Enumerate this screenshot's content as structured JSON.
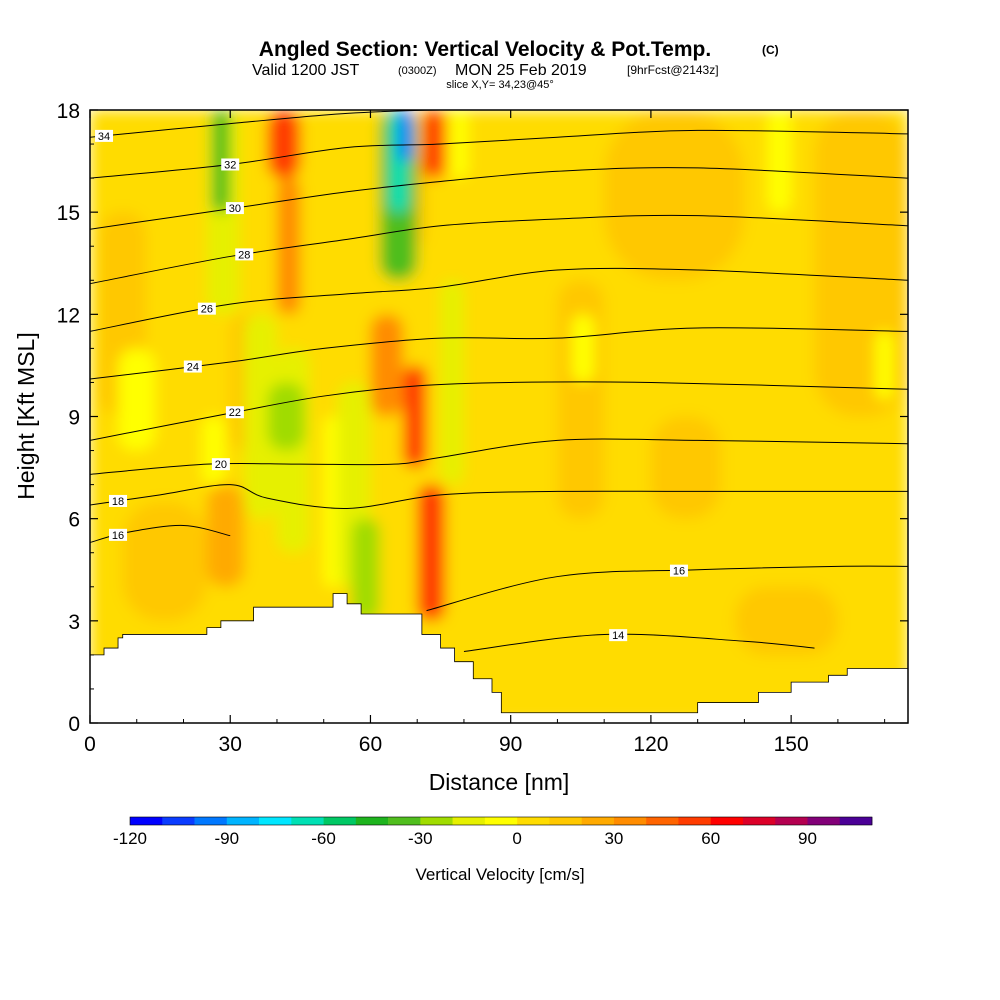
{
  "header": {
    "title": "Angled Section: Vertical Velocity & Pot.Temp.",
    "title_unit": "(C)",
    "valid_prefix": "Valid 1200 JST",
    "valid_utc": "(0300Z)",
    "valid_date": "MON 25 Feb 2019",
    "forecast": "[9hrFcst@2143z]",
    "slice": "slice X,Y= 34,23@45°"
  },
  "chart_data": {
    "type": "heatmap",
    "xlabel": "Distance [nm]",
    "ylabel": "Height [Kft MSL]",
    "xlim": [
      0,
      175
    ],
    "ylim": [
      0,
      18
    ],
    "x_ticks": [
      0,
      30,
      60,
      90,
      120,
      150
    ],
    "y_ticks": [
      0,
      3,
      6,
      9,
      12,
      15,
      18
    ],
    "x_tick_labels": [
      "0",
      "30",
      "60",
      "90",
      "120",
      "150"
    ],
    "y_tick_labels": [
      "0",
      "3",
      "6",
      "9",
      "12",
      "15",
      "18"
    ],
    "colorbar": {
      "label": "Vertical Velocity [cm/s]",
      "range": [
        -120,
        110
      ],
      "step": 10,
      "tick_values": [
        -120,
        -90,
        -60,
        -30,
        0,
        30,
        60,
        90
      ],
      "tick_labels": [
        "-120",
        "-90",
        "-60",
        "-30",
        "0",
        "30",
        "60",
        "90"
      ],
      "colors": [
        "#0000ff",
        "#0a3cff",
        "#0078ff",
        "#00b4ff",
        "#00e6ff",
        "#00e0b4",
        "#00c864",
        "#1eb41e",
        "#50be1e",
        "#a0dc00",
        "#e6f000",
        "#ffff00",
        "#ffdc00",
        "#ffc800",
        "#ffaa00",
        "#ff8c00",
        "#ff6400",
        "#ff3c00",
        "#ff0000",
        "#dc0028",
        "#b40050",
        "#820078",
        "#4b0096"
      ]
    },
    "velocity_cells": [
      {
        "x0": 0,
        "x1": 175,
        "y0": 0,
        "y1": 18,
        "v": 5
      },
      {
        "x0": 0,
        "x1": 28,
        "y0": 0,
        "y1": 6,
        "v": 0
      },
      {
        "x0": 90,
        "x1": 175,
        "y0": 0,
        "y1": 5,
        "v": 0
      },
      {
        "x0": 7,
        "x1": 25,
        "y0": 3,
        "y1": 6.5,
        "v": 15
      },
      {
        "x0": 25,
        "x1": 33,
        "y0": 4,
        "y1": 7,
        "v": 25
      },
      {
        "x0": 110,
        "x1": 140,
        "y0": 13,
        "y1": 18,
        "v": 15
      },
      {
        "x0": 120,
        "x1": 135,
        "y0": 6,
        "y1": 9,
        "v": 15
      },
      {
        "x0": 100,
        "x1": 110,
        "y0": 6,
        "y1": 13,
        "v": 15
      },
      {
        "x0": 155,
        "x1": 175,
        "y0": 9,
        "y1": 18,
        "v": 15
      },
      {
        "x0": 138,
        "x1": 160,
        "y0": 2,
        "y1": 4,
        "v": 15
      },
      {
        "x0": 2,
        "x1": 12,
        "y0": 9,
        "y1": 15,
        "v": 15
      },
      {
        "x0": 66,
        "x1": 72,
        "y0": 14,
        "y1": 17,
        "v": 15
      },
      {
        "x0": 30,
        "x1": 37,
        "y0": 8,
        "y1": 12,
        "v": 15
      },
      {
        "x0": 6,
        "x1": 14,
        "y0": 8,
        "y1": 11,
        "v": -10
      },
      {
        "x0": 24,
        "x1": 29,
        "y0": 7,
        "y1": 9,
        "v": -10
      },
      {
        "x0": 103,
        "x1": 108,
        "y0": 10,
        "y1": 12,
        "v": -10
      },
      {
        "x0": 145,
        "x1": 150,
        "y0": 15,
        "y1": 18,
        "v": -10
      },
      {
        "x0": 168,
        "x1": 172,
        "y0": 9.5,
        "y1": 11.5,
        "v": -10
      },
      {
        "x0": 77,
        "x1": 81,
        "y0": 16,
        "y1": 18,
        "v": -10
      },
      {
        "x0": 50,
        "x1": 54,
        "y0": 4,
        "y1": 9,
        "v": -10
      },
      {
        "x0": 25,
        "x1": 32,
        "y0": 12,
        "y1": 18,
        "v": -20
      },
      {
        "x0": 33,
        "x1": 40,
        "y0": 6,
        "y1": 12,
        "v": -20
      },
      {
        "x0": 40,
        "x1": 47,
        "y0": 5,
        "y1": 11,
        "v": -20
      },
      {
        "x0": 53,
        "x1": 60,
        "y0": 4,
        "y1": 10,
        "v": -20
      },
      {
        "x0": 56,
        "x1": 62,
        "y0": 3,
        "y1": 6,
        "v": -30
      },
      {
        "x0": 62,
        "x1": 70,
        "y0": 13,
        "y1": 18,
        "v": -40
      },
      {
        "x0": 75,
        "x1": 80,
        "y0": 7,
        "y1": 13,
        "v": -20
      },
      {
        "x0": 26,
        "x1": 30,
        "y0": 15,
        "y1": 18,
        "v": -40
      },
      {
        "x0": 38,
        "x1": 46,
        "y0": 8,
        "y1": 10,
        "v": -30
      },
      {
        "x0": 64,
        "x1": 68,
        "y0": 15,
        "y1": 18,
        "v": -70
      },
      {
        "x0": 66,
        "x1": 69,
        "y0": 16.5,
        "y1": 18,
        "v": -100
      },
      {
        "x0": 38,
        "x1": 45,
        "y0": 16,
        "y1": 18,
        "v": 50
      },
      {
        "x0": 40,
        "x1": 45,
        "y0": 12,
        "y1": 16,
        "v": 30
      },
      {
        "x0": 60,
        "x1": 67,
        "y0": 9,
        "y1": 12,
        "v": 30
      },
      {
        "x0": 67,
        "x1": 72,
        "y0": 7.5,
        "y1": 10.5,
        "v": 50
      },
      {
        "x0": 70,
        "x1": 76,
        "y0": 3,
        "y1": 7,
        "v": 50
      },
      {
        "x0": 71,
        "x1": 76,
        "y0": 16,
        "y1": 18,
        "v": 50
      }
    ],
    "theta_contours": [
      {
        "level": 14,
        "x": [
          80,
          110,
          140,
          155
        ],
        "y": [
          2.1,
          2.6,
          2.4,
          2.2
        ],
        "label_x": 113
      },
      {
        "level": 16,
        "x": [
          72,
          100,
          130,
          160,
          175
        ],
        "y": [
          3.3,
          4.3,
          4.5,
          4.6,
          4.6
        ],
        "label_x": 126
      },
      {
        "level": 16,
        "x": [
          0,
          8,
          20,
          30
        ],
        "y": [
          5.3,
          5.6,
          5.8,
          5.5
        ],
        "label_x": 6
      },
      {
        "level": 18,
        "x": [
          0,
          15,
          30,
          38,
          55,
          75,
          100,
          130,
          175
        ],
        "y": [
          6.4,
          6.7,
          7.0,
          6.6,
          6.3,
          6.7,
          6.8,
          6.8,
          6.8
        ],
        "label_x": 6
      },
      {
        "level": 20,
        "x": [
          0,
          25,
          45,
          65,
          75,
          100,
          130,
          175
        ],
        "y": [
          7.3,
          7.6,
          7.6,
          7.6,
          7.8,
          8.3,
          8.3,
          8.2
        ],
        "label_x": 28
      },
      {
        "level": 22,
        "x": [
          0,
          30,
          50,
          70,
          90,
          120,
          175
        ],
        "y": [
          8.3,
          9.1,
          9.6,
          9.9,
          10.0,
          10.0,
          9.8
        ],
        "label_x": 31
      },
      {
        "level": 24,
        "x": [
          0,
          30,
          50,
          75,
          100,
          130,
          175
        ],
        "y": [
          10.1,
          10.6,
          11.0,
          11.3,
          11.3,
          11.6,
          11.5
        ],
        "label_x": 22
      },
      {
        "level": 26,
        "x": [
          0,
          30,
          55,
          75,
          100,
          130,
          175
        ],
        "y": [
          11.5,
          12.3,
          12.6,
          12.8,
          13.3,
          13.3,
          13.0
        ],
        "label_x": 25
      },
      {
        "level": 28,
        "x": [
          0,
          30,
          55,
          75,
          100,
          130,
          175
        ],
        "y": [
          12.9,
          13.7,
          14.2,
          14.6,
          14.8,
          14.9,
          14.6
        ],
        "label_x": 33
      },
      {
        "level": 30,
        "x": [
          0,
          30,
          55,
          75,
          100,
          130,
          175
        ],
        "y": [
          14.5,
          15.1,
          15.6,
          15.9,
          16.2,
          16.3,
          16.0
        ],
        "label_x": 31
      },
      {
        "level": 32,
        "x": [
          0,
          30,
          55,
          75,
          100,
          130,
          175
        ],
        "y": [
          16.0,
          16.4,
          16.9,
          17.0,
          17.2,
          17.4,
          17.3
        ],
        "label_x": 30
      },
      {
        "level": 34,
        "x": [
          0,
          30,
          55,
          75,
          100,
          175
        ],
        "y": [
          17.2,
          17.6,
          17.9,
          18.0,
          18.0,
          18.0
        ],
        "label_x": 3
      }
    ],
    "terrain": {
      "x": [
        0,
        3,
        3,
        6,
        6,
        7,
        7,
        25,
        25,
        28,
        28,
        35,
        35,
        52,
        52,
        55,
        55,
        58,
        58,
        62,
        62,
        71,
        71,
        75,
        75,
        78,
        78,
        82,
        82,
        86,
        86,
        88,
        88,
        130,
        130,
        143,
        143,
        150,
        150,
        158,
        158,
        162,
        162,
        175
      ],
      "y": [
        2,
        2,
        2.2,
        2.2,
        2.5,
        2.5,
        2.6,
        2.6,
        2.8,
        2.8,
        3.0,
        3.0,
        3.4,
        3.4,
        3.8,
        3.8,
        3.5,
        3.5,
        3.2,
        3.2,
        3.2,
        3.2,
        2.6,
        2.6,
        2.2,
        2.2,
        1.8,
        1.8,
        1.3,
        1.3,
        0.9,
        0.9,
        0.3,
        0.3,
        0.6,
        0.6,
        0.9,
        0.9,
        1.2,
        1.2,
        1.4,
        1.4,
        1.6,
        1.6
      ]
    }
  }
}
